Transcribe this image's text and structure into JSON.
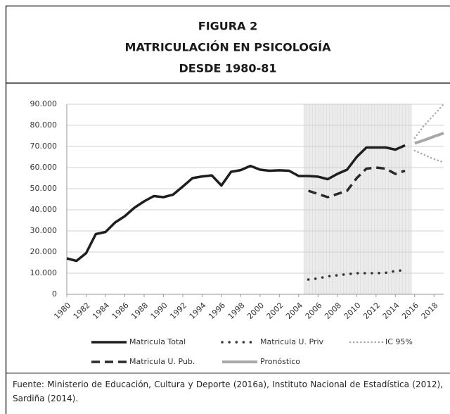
{
  "chart_data": {
    "type": "line",
    "title": [
      "FIGURA 2",
      "MATRICULACIÓN EN PSICOLOGÍA",
      "DESDE 1980-81"
    ],
    "xlim": [
      1980,
      2019
    ],
    "xticks": [
      1980,
      1982,
      1984,
      1986,
      1988,
      1990,
      1992,
      1994,
      1996,
      1998,
      2000,
      2002,
      2004,
      2006,
      2008,
      2010,
      2012,
      2014,
      2016,
      2018
    ],
    "ylim": [
      0,
      90000
    ],
    "yticks": [
      0,
      {
        "value": 10000,
        "label": "10.000"
      },
      {
        "value": 20000,
        "label": "20.000"
      },
      {
        "value": 30000,
        "label": "30.000"
      },
      {
        "value": 40000,
        "label": "40.000"
      },
      {
        "value": 50000,
        "label": "50.000"
      },
      {
        "value": 60000,
        "label": "60.000"
      },
      {
        "value": 70000,
        "label": "70.000"
      },
      {
        "value": 80000,
        "label": "80.000"
      },
      {
        "value": 90000,
        "label": "90.000"
      }
    ],
    "grid": true,
    "shaded_range": [
      2004.5,
      2015.7
    ],
    "series": [
      {
        "name": "Matricula Total",
        "color": "#1e1e1e",
        "style": "solid",
        "x": [
          1980,
          1981,
          1982,
          1983,
          1984,
          1985,
          1986,
          1987,
          1988,
          1989,
          1990,
          1991,
          1992,
          1993,
          1994,
          1995,
          1996,
          1997,
          1998,
          1999,
          2000,
          2001,
          2002,
          2003,
          2004,
          2005,
          2006,
          2007,
          2008,
          2009,
          2010,
          2011,
          2012,
          2013,
          2014,
          2015
        ],
        "values": [
          17000,
          15800,
          19500,
          28500,
          29500,
          34000,
          37000,
          41000,
          44000,
          46500,
          46000,
          47200,
          51000,
          55000,
          55800,
          56300,
          51500,
          58000,
          58800,
          60800,
          59000,
          58500,
          58700,
          58500,
          56000,
          56000,
          55700,
          54500,
          57000,
          59000,
          65000,
          69500,
          69500,
          69500,
          68500,
          70500
        ]
      },
      {
        "name": "Matricula U. Priv",
        "color": "#333333",
        "style": "dots",
        "x": [
          2005,
          2006,
          2007,
          2008,
          2009,
          2010,
          2011,
          2012,
          2013,
          2014,
          2015
        ],
        "values": [
          7000,
          7500,
          8500,
          9000,
          9500,
          10000,
          10000,
          10000,
          10200,
          11000,
          11500
        ]
      },
      {
        "name": "IC 95%",
        "color": "#a8a8a8",
        "style": "dotted",
        "x": [
          2016,
          2017,
          2018,
          2019
        ],
        "upper": [
          74000,
          80000,
          85000,
          90000
        ],
        "lower": [
          68000,
          66000,
          64000,
          62500
        ]
      },
      {
        "name": "Matricula U. Pub.",
        "color": "#2a2a2a",
        "style": "dashed",
        "x": [
          2005,
          2006,
          2007,
          2008,
          2009,
          2010,
          2011,
          2012,
          2013,
          2014,
          2015
        ],
        "values": [
          49000,
          47500,
          46000,
          47500,
          49000,
          55000,
          59500,
          60000,
          59500,
          57000,
          58500
        ]
      },
      {
        "name": "Pronóstico",
        "color": "#a8a8a8",
        "style": "thick",
        "x": [
          2016,
          2017,
          2018,
          2019
        ],
        "values": [
          71500,
          73000,
          74700,
          76300
        ]
      }
    ]
  },
  "footer": "Fuente: Ministerio de Educación, Cultura y Deporte (2016a), Instituto Nacional de Estadística (2012), Sardiña (2014)."
}
